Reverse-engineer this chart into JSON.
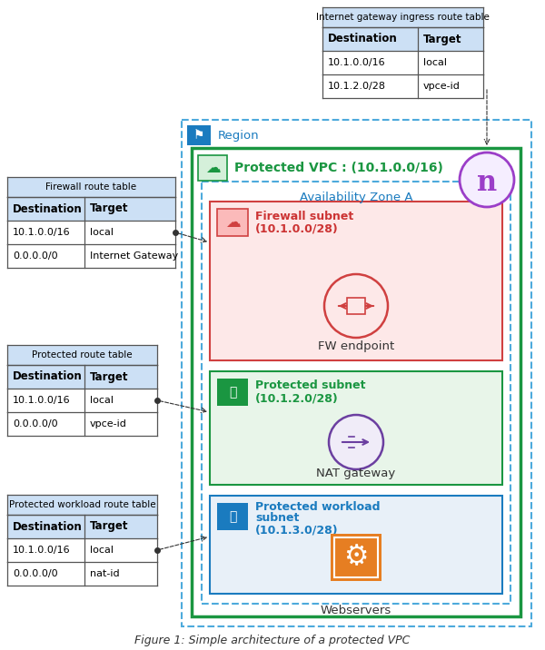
{
  "title": "Figure 1: Simple architecture of a protected VPC",
  "bg_color": "#ffffff",
  "colors": {
    "region_text": "#1a7bbf",
    "vpc_text": "#1a9641",
    "az_text": "#1a7bbf",
    "fw_subnet_text": "#cc3333",
    "protected_subnet_text": "#1a9641",
    "workload_subnet_text": "#1a7bbf",
    "dark_gray": "#333333",
    "border_gray": "#555555",
    "dashed_blue": "#4daadc",
    "igw_purple": "#9b3ec8"
  },
  "labels": {
    "region": "Region",
    "vpc": "Protected VPC : (10.1.0.0/16)",
    "az": "Availability Zone A",
    "firewall_subnet_line1": "Firewall subnet",
    "firewall_subnet_line2": "(10.1.0.0/28)",
    "fw_endpoint": "FW endpoint",
    "protected_subnet_line1": "Protected subnet",
    "protected_subnet_line2": "(10.1.2.0/28)",
    "nat_gateway": "NAT gateway",
    "workload_subnet_line1": "Protected workload",
    "workload_subnet_line2": "subnet",
    "workload_subnet_line3": "(10.1.3.0/28)",
    "webservers": "Webservers"
  },
  "igw_table": {
    "title": "Internet gateway ingress route table",
    "headers": [
      "Destination",
      "Target"
    ],
    "rows": [
      [
        "10.1.0.0/16",
        "local"
      ],
      [
        "10.1.2.0/28",
        "vpce-id"
      ]
    ]
  },
  "fw_table": {
    "title": "Firewall route table",
    "headers": [
      "Destination",
      "Target"
    ],
    "rows": [
      [
        "10.1.0.0/16",
        "local"
      ],
      [
        "0.0.0.0/0",
        "Internet Gateway"
      ]
    ]
  },
  "protected_table": {
    "title": "Protected route table",
    "headers": [
      "Destination",
      "Target"
    ],
    "rows": [
      [
        "10.1.0.0/16",
        "local"
      ],
      [
        "0.0.0.0/0",
        "vpce-id"
      ]
    ]
  },
  "workload_table": {
    "title": "Protected workload route table",
    "headers": [
      "Destination",
      "Target"
    ],
    "rows": [
      [
        "10.1.0.0/16",
        "local"
      ],
      [
        "0.0.0.0/0",
        "nat-id"
      ]
    ]
  }
}
